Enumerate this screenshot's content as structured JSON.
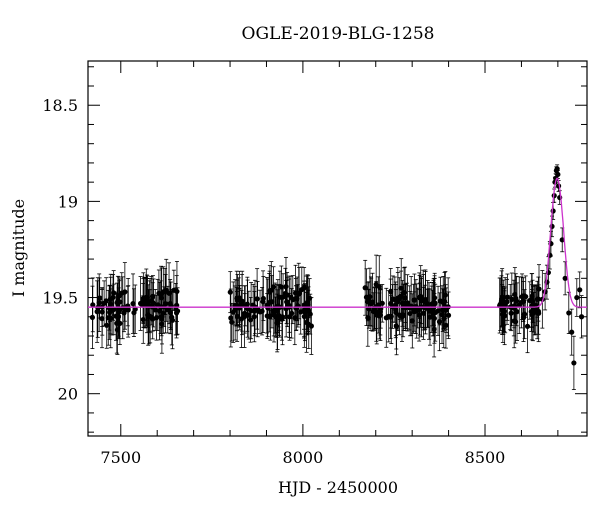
{
  "chart_data": {
    "type": "scatter",
    "title": "OGLE-2019-BLG-1258",
    "xlabel": "HJD - 2450000",
    "ylabel": "I magnitude",
    "xlim": [
      7410,
      8780
    ],
    "ylim": [
      18.27,
      20.22
    ],
    "y_inverted": true,
    "grid": false,
    "legend": "none",
    "xticks": [
      7500,
      8000,
      8500
    ],
    "xtick_labels": [
      "7500",
      "8000",
      "8500"
    ],
    "yticks": [
      18.5,
      19,
      19.5,
      20
    ],
    "ytick_labels": [
      "18.5",
      "19",
      "19.5",
      "20"
    ],
    "marker_color": "#000000",
    "model_color": "#cc33cc",
    "series": [
      {
        "kind": "points_with_errorbars",
        "seasons": [
          {
            "x_range": [
              7420,
              7660
            ],
            "baseline": 19.55,
            "scatter": 0.08,
            "error": 0.13,
            "count": 95
          },
          {
            "x_range": [
              7800,
              8030
            ],
            "baseline": 19.55,
            "scatter": 0.08,
            "error": 0.13,
            "count": 105
          },
          {
            "x_range": [
              8170,
              8400
            ],
            "baseline": 19.55,
            "scatter": 0.08,
            "error": 0.13,
            "count": 110
          },
          {
            "x_range": [
              8540,
              8660
            ],
            "baseline": 19.55,
            "scatter": 0.07,
            "error": 0.12,
            "count": 55
          }
        ],
        "event": {
          "peak_time": 8698,
          "peak_mag": 18.84,
          "points": [
            [
              8665,
              19.47
            ],
            [
              8670,
              19.42
            ],
            [
              8674,
              19.37
            ],
            [
              8678,
              19.28
            ],
            [
              8681,
              19.22
            ],
            [
              8684,
              19.13
            ],
            [
              8687,
              19.05
            ],
            [
              8690,
              18.97
            ],
            [
              8692,
              18.9
            ],
            [
              8694,
              18.88
            ],
            [
              8696,
              18.84
            ],
            [
              8698,
              18.83
            ],
            [
              8700,
              18.86
            ],
            [
              8702,
              18.92
            ],
            [
              8705,
              18.98
            ],
            [
              8712,
              19.2
            ],
            [
              8720,
              19.4
            ],
            [
              8730,
              19.58
            ],
            [
              8738,
              19.68
            ],
            [
              8744,
              19.84
            ],
            [
              8752,
              19.5
            ],
            [
              8760,
              19.46
            ],
            [
              8765,
              19.6
            ]
          ]
        }
      },
      {
        "kind": "model_curve",
        "baseline": 19.55,
        "peak_time": 8698,
        "peak_mag": 18.88
      }
    ]
  }
}
